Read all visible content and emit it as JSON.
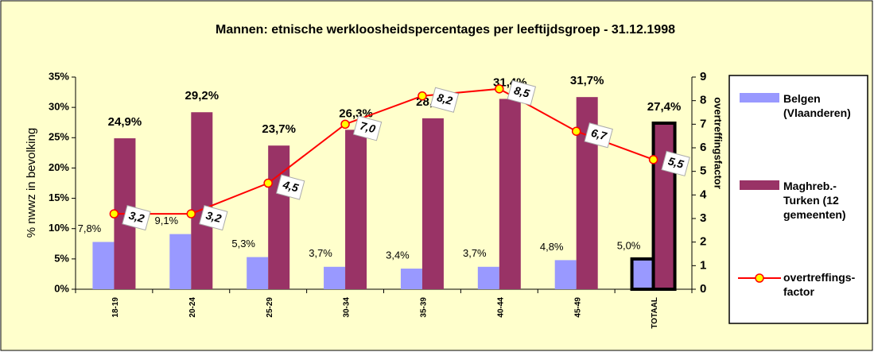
{
  "chart_data": {
    "type": "bar-line",
    "title": "Mannen: etnische werkloosheidspercentages per leeftijdsgroep - 31.12.1998",
    "y_label": "% nwwz in bevolking",
    "y2_label": "overtreffingsfactor",
    "categories": [
      "18-19",
      "20-24",
      "25-29",
      "30-34",
      "35-39",
      "40-44",
      "45-49",
      "TOTAAL"
    ],
    "series": [
      {
        "name": "Belgen (Vlaanderen)",
        "color": "#9999ff",
        "kind": "bar",
        "values": [
          7.8,
          9.1,
          5.3,
          3.7,
          3.4,
          3.7,
          4.8,
          5.0
        ],
        "value_labels": [
          "7,8%",
          "9,1%",
          "5,3%",
          "3,7%",
          "3,4%",
          "3,7%",
          "4,8%",
          "5,0%"
        ]
      },
      {
        "name": "Maghreb.- Turken (12 gemeenten)",
        "color": "#993366",
        "kind": "bar",
        "values": [
          24.9,
          29.2,
          23.7,
          26.3,
          28.2,
          31.4,
          31.7,
          27.4
        ],
        "value_labels": [
          "24,9%",
          "29,2%",
          "23,7%",
          "26,3%",
          "28,2%",
          "31,4%",
          "31,7%",
          "27,4%"
        ]
      },
      {
        "name": "overtreffings-factor",
        "color": "#ff0000",
        "kind": "line",
        "axis": "y2",
        "values": [
          3.2,
          3.2,
          4.5,
          7.0,
          8.2,
          8.5,
          6.7,
          5.5
        ],
        "value_labels": [
          "3,2",
          "3,2",
          "4,5",
          "7,0",
          "8,2",
          "8,5",
          "6,7",
          "5,5"
        ]
      }
    ],
    "ylim": [
      0,
      35
    ],
    "yticks": [
      {
        "value": 0,
        "label": "0%"
      },
      {
        "value": 5,
        "label": "5%"
      },
      {
        "value": 10,
        "label": "10%"
      },
      {
        "value": 15,
        "label": "15%"
      },
      {
        "value": 20,
        "label": "20%"
      },
      {
        "value": 25,
        "label": "25%"
      },
      {
        "value": 30,
        "label": "30%"
      },
      {
        "value": 35,
        "label": "35%"
      }
    ],
    "y2lim": [
      0,
      9
    ],
    "y2ticks": [
      0,
      1,
      2,
      3,
      4,
      5,
      6,
      7,
      8,
      9
    ]
  }
}
